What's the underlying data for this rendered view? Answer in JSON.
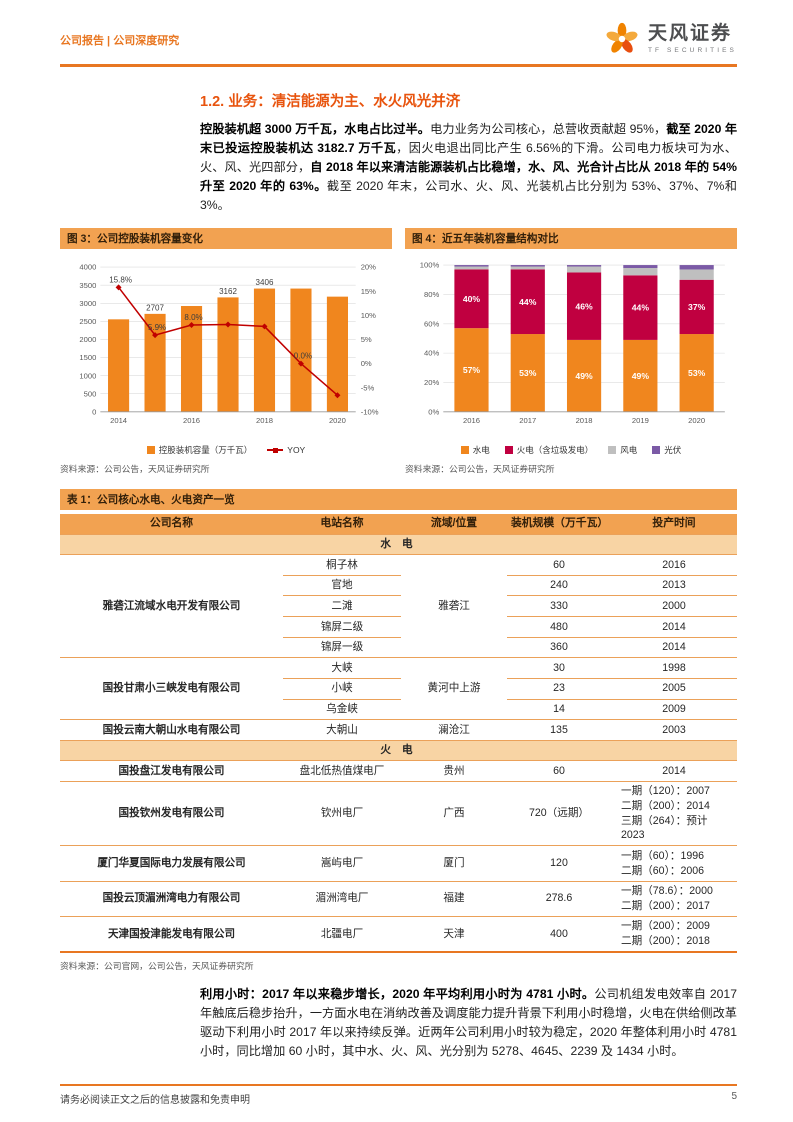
{
  "colors": {
    "brand_orange": "#E87722",
    "heading_orange": "#E8540E",
    "hydro_orange": "#F0861E",
    "thermal_red": "#C00040",
    "wind_gray": "#BFBFBF",
    "solar_purple": "#7B5AA6",
    "yoy_red": "#C00000"
  },
  "header": {
    "breadcrumb": "公司报告 | 公司深度研究",
    "brand_name": "天风证券",
    "brand_sub": "TF SECURITIES"
  },
  "section_title": "1.2. 业务：清洁能源为主、水火风光并济",
  "para1": {
    "s1": "控股装机超 3000 万千瓦，水电占比过半。",
    "s2": "电力业务为公司核心，总营收贡献超 95%，",
    "s3": "截至 2020 年末已投运控股装机达 3182.7 万千瓦",
    "s4": "，因火电退出同比产生 6.56%的下滑。公司电力板块可为水、火、风、光四部分，",
    "s5": "自 2018 年以来清洁能源装机占比稳增，水、风、光合计占比从 2018 年的 54%升至 2020 年的 63%。",
    "s6": "截至 2020 年末，公司水、火、风、光装机占比分别为 53%、37%、7%和 3%。"
  },
  "figure3": {
    "title": "图 3：公司控股装机容量变化",
    "legend": [
      "控股装机容量（万千瓦）",
      "YOY"
    ],
    "source": "资料来源：公司公告，天风证券研究所"
  },
  "figure4": {
    "title": "图 4：近五年装机容量结构对比",
    "legend": [
      "水电",
      "火电（含垃圾发电）",
      "风电",
      "光伏"
    ],
    "source": "资料来源：公司公告，天风证券研究所"
  },
  "chart_data": [
    {
      "type": "bar",
      "title": "公司控股装机容量变化",
      "categories": [
        2014,
        2015,
        2016,
        2017,
        2018,
        2019,
        2020
      ],
      "series": [
        {
          "name": "控股装机容量（万千瓦）",
          "kind": "bar",
          "axis": "left",
          "color": "#F0861E",
          "values": [
            2556,
            2707,
            2924,
            3162,
            3406,
            3406,
            3183
          ]
        },
        {
          "name": "YOY",
          "kind": "line",
          "axis": "right",
          "color": "#C00000",
          "values": [
            15.8,
            5.9,
            8.0,
            8.1,
            7.7,
            0.0,
            -6.56
          ]
        }
      ],
      "left_axis": {
        "min": 0,
        "max": 4000,
        "step": 500
      },
      "right_axis": {
        "min": -10,
        "max": 20,
        "step": 5,
        "format": "percent"
      },
      "bar_labels": {
        "2015": "2707",
        "2017": "3162",
        "2018": "3406"
      },
      "line_labels": {
        "2014": "15.8%",
        "2015": "5.9%",
        "2016": "8.0%",
        "2019": "0.0%"
      },
      "x_ticks": [
        "2014",
        "2016",
        "2018",
        "2020"
      ],
      "grid": true,
      "legend_position": "bottom"
    },
    {
      "type": "bar",
      "subtype": "stacked-100",
      "title": "近五年装机容量结构对比",
      "categories": [
        2016,
        2017,
        2018,
        2019,
        2020
      ],
      "series": [
        {
          "name": "水电",
          "color": "#F0861E",
          "values": [
            57,
            53,
            49,
            49,
            53
          ]
        },
        {
          "name": "火电（含垃圾发电）",
          "color": "#C00040",
          "values": [
            40,
            44,
            46,
            44,
            37
          ]
        },
        {
          "name": "风电",
          "color": "#BFBFBF",
          "values": [
            2,
            2,
            4,
            5,
            7
          ]
        },
        {
          "name": "光伏",
          "color": "#7B5AA6",
          "values": [
            1,
            1,
            1,
            2,
            3
          ]
        }
      ],
      "y_axis": {
        "min": 0,
        "max": 100,
        "step": 20,
        "format": "percent"
      },
      "labeled_series": [
        "水电",
        "火电（含垃圾发电）"
      ],
      "grid": true,
      "legend_position": "bottom"
    }
  ],
  "table1": {
    "title": "表 1：公司核心水电、火电资产一览",
    "source": "资料来源：公司官网，公司公告，天风证券研究所",
    "headers": [
      "公司名称",
      "电站名称",
      "流域/位置",
      "装机规模（万千瓦）",
      "投产时间"
    ],
    "sections": [
      {
        "label": "水 电",
        "groups": [
          {
            "company": "雅砻江流域水电开发有限公司",
            "location": "雅砻江",
            "rows": [
              {
                "station": "桐子林",
                "capacity": "60",
                "year": "2016"
              },
              {
                "station": "官地",
                "capacity": "240",
                "year": "2013"
              },
              {
                "station": "二滩",
                "capacity": "330",
                "year": "2000"
              },
              {
                "station": "锦屏二级",
                "capacity": "480",
                "year": "2014"
              },
              {
                "station": "锦屏一级",
                "capacity": "360",
                "year": "2014"
              }
            ]
          },
          {
            "company": "国投甘肃小三峡发电有限公司",
            "location": "黄河中上游",
            "rows": [
              {
                "station": "大峡",
                "capacity": "30",
                "year": "1998"
              },
              {
                "station": "小峡",
                "capacity": "23",
                "year": "2005"
              },
              {
                "station": "乌金峡",
                "capacity": "14",
                "year": "2009"
              }
            ]
          },
          {
            "company": "国投云南大朝山水电有限公司",
            "location": "澜沧江",
            "rows": [
              {
                "station": "大朝山",
                "capacity": "135",
                "year": "2003"
              }
            ]
          }
        ]
      },
      {
        "label": "火 电",
        "groups": [
          {
            "company": "国投盘江发电有限公司",
            "location": "贵州",
            "rows": [
              {
                "station": "盘北低热值煤电厂",
                "capacity": "60",
                "year": "2014"
              }
            ]
          },
          {
            "company": "国投钦州发电有限公司",
            "location": "广西",
            "rows": [
              {
                "station": "钦州电厂",
                "capacity": "720（远期）",
                "year": "一期（120）：2007\n二期（200）：2014\n三期（264）：预计\n2023"
              }
            ]
          },
          {
            "company": "厦门华夏国际电力发展有限公司",
            "location": "厦门",
            "rows": [
              {
                "station": "嵩屿电厂",
                "capacity": "120",
                "year": "一期（60）：1996\n二期（60）：2006"
              }
            ]
          },
          {
            "company": "国投云顶湄洲湾电力有限公司",
            "location": "福建",
            "rows": [
              {
                "station": "湄洲湾电厂",
                "capacity": "278.6",
                "year": "一期（78.6）：2000\n二期（200）：2017"
              }
            ]
          },
          {
            "company": "天津国投津能发电有限公司",
            "location": "天津",
            "rows": [
              {
                "station": "北疆电厂",
                "capacity": "400",
                "year": "一期（200）：2009\n二期（200）：2018"
              }
            ]
          }
        ]
      }
    ]
  },
  "para2": {
    "s1": "利用小时：2017 年以来稳步增长，2020 年平均利用小时为 4781 小时。",
    "s2": "公司机组发电效率自 2017 年触底后稳步抬升，一方面水电在消纳改善及调度能力提升背景下利用小时稳增，火电在供给侧改革驱动下利用小时 2017 年以来持续反弹。近两年公司利用小时较为稳定，2020 年整体利用小时 4781 小时，同比增加 60 小时，其中水、火、风、光分别为 5278、4645、2239 及 1434 小时。"
  },
  "footer": {
    "disclaimer": "请务必阅读正文之后的信息披露和免责申明",
    "page": "5"
  }
}
